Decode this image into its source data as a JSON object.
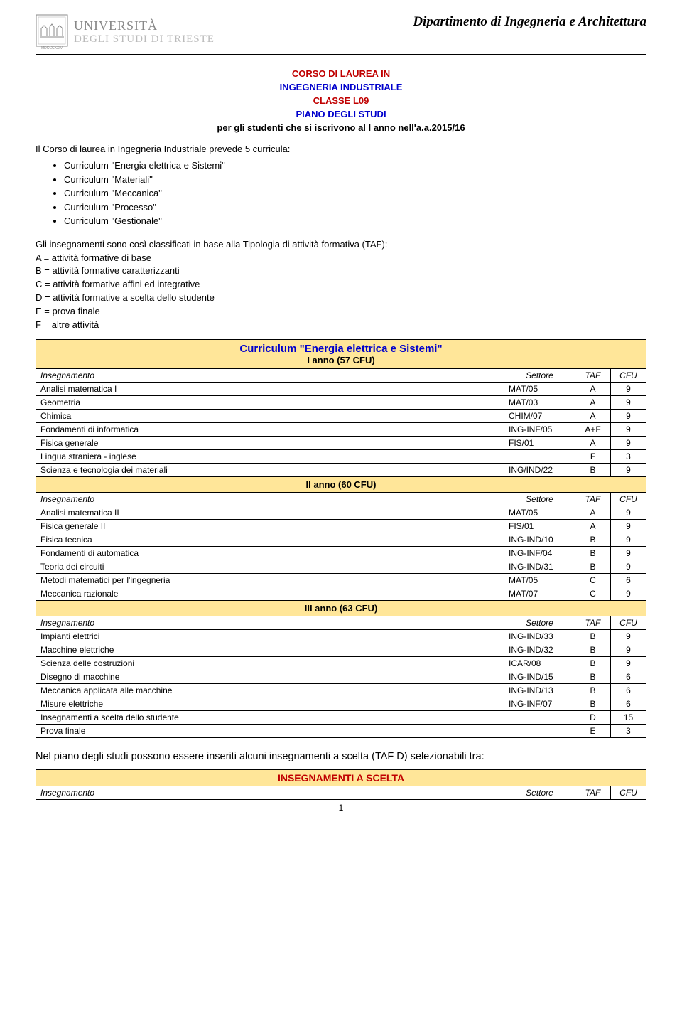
{
  "header": {
    "uni1": "UNIVERSITÀ",
    "uni2": "DEGLI STUDI DI TRIESTE",
    "dept": "Dipartimento di Ingegneria e Architettura"
  },
  "titles": {
    "corso": "CORSO DI LAUREA IN",
    "ing": "INGEGNERIA INDUSTRIALE",
    "classe": "CLASSE L09",
    "piano": "PIANO DEGLI STUDI",
    "pergli": "per gli studenti che si iscrivono al I anno nell'a.a.2015/16"
  },
  "intro": "Il Corso di laurea in Ingegneria Industriale prevede 5 curricula:",
  "curricula": [
    "Curriculum \"Energia elettrica e Sistemi\"",
    "Curriculum \"Materiali\"",
    "Curriculum \"Meccanica\"",
    "Curriculum \"Processo\"",
    "Curriculum \"Gestionale\""
  ],
  "taf": {
    "intro": "Gli insegnamenti sono così classificati in base alla Tipologia di attività formativa (TAF):",
    "A": "A = attività formative di base",
    "B": "B = attività formative caratterizzanti",
    "C": "C = attività formative affini ed integrative",
    "D": "D = attività formative a scelta dello studente",
    "E": "E = prova finale",
    "F": "F = altre attività"
  },
  "table": {
    "curriculum_title": "Curriculum \"Energia elettrica e Sistemi\"",
    "year1_label": "I anno (57 CFU)",
    "year2_label": "II anno (60 CFU)",
    "year3_label": "III anno (63 CFU)",
    "col_ins": "Insegnamento",
    "col_set": "Settore",
    "col_taf": "TAF",
    "col_cfu": "CFU",
    "year1": [
      {
        "n": "Analisi matematica I",
        "s": "MAT/05",
        "t": "A",
        "c": "9"
      },
      {
        "n": "Geometria",
        "s": "MAT/03",
        "t": "A",
        "c": "9"
      },
      {
        "n": "Chimica",
        "s": "CHIM/07",
        "t": "A",
        "c": "9"
      },
      {
        "n": "Fondamenti di informatica",
        "s": "ING-INF/05",
        "t": "A+F",
        "c": "9"
      },
      {
        "n": "Fisica generale",
        "s": "FIS/01",
        "t": "A",
        "c": "9"
      },
      {
        "n": "Lingua straniera - inglese",
        "s": "",
        "t": "F",
        "c": "3"
      },
      {
        "n": "Scienza e tecnologia dei materiali",
        "s": "ING/IND/22",
        "t": "B",
        "c": "9"
      }
    ],
    "year2": [
      {
        "n": "Analisi matematica II",
        "s": "MAT/05",
        "t": "A",
        "c": "9"
      },
      {
        "n": "Fisica generale II",
        "s": "FIS/01",
        "t": "A",
        "c": "9"
      },
      {
        "n": "Fisica tecnica",
        "s": "ING-IND/10",
        "t": "B",
        "c": "9"
      },
      {
        "n": "Fondamenti di automatica",
        "s": "ING-INF/04",
        "t": "B",
        "c": "9"
      },
      {
        "n": "Teoria dei circuiti",
        "s": "ING-IND/31",
        "t": "B",
        "c": "9"
      },
      {
        "n": "Metodi matematici per l'ingegneria",
        "s": "MAT/05",
        "t": "C",
        "c": "6"
      },
      {
        "n": "Meccanica razionale",
        "s": "MAT/07",
        "t": "C",
        "c": "9"
      }
    ],
    "year3": [
      {
        "n": "Impianti elettrici",
        "s": "ING-IND/33",
        "t": "B",
        "c": "9"
      },
      {
        "n": "Macchine elettriche",
        "s": "ING-IND/32",
        "t": "B",
        "c": "9"
      },
      {
        "n": "Scienza delle costruzioni",
        "s": "ICAR/08",
        "t": "B",
        "c": "9"
      },
      {
        "n": "Disegno di macchine",
        "s": "ING-IND/15",
        "t": "B",
        "c": "6"
      },
      {
        "n": "Meccanica applicata alle macchine",
        "s": "ING-IND/13",
        "t": "B",
        "c": "6"
      },
      {
        "n": "Misure elettriche",
        "s": "ING-INF/07",
        "t": "B",
        "c": "6"
      },
      {
        "n": "Insegnamenti a scelta dello studente",
        "s": "",
        "t": "D",
        "c": "15"
      },
      {
        "n": "Prova finale",
        "s": "",
        "t": "E",
        "c": "3"
      }
    ]
  },
  "footer_note": "Nel piano degli studi possono essere inseriti alcuni insegnamenti a scelta (TAF D) selezionabili tra:",
  "scelta": {
    "title": "INSEGNAMENTI A SCELTA",
    "col_ins": "Insegnamento",
    "col_set": "Settore",
    "col_taf": "TAF",
    "col_cfu": "CFU"
  },
  "page": "1"
}
